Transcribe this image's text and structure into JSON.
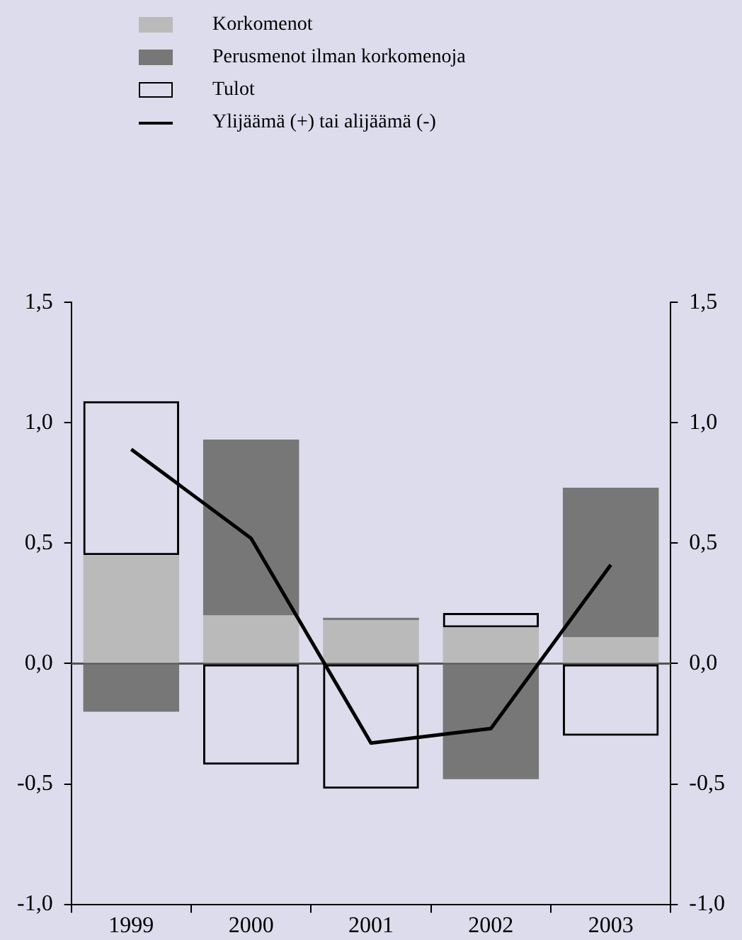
{
  "chart_data": {
    "type": "bar",
    "stacked": true,
    "categories": [
      "1999",
      "2000",
      "2001",
      "2002",
      "2003"
    ],
    "series": [
      {
        "name": "Korkomenot",
        "color": "#bababa",
        "values": [
          0.45,
          0.2,
          0.18,
          0.15,
          0.11
        ]
      },
      {
        "name": "Perusmenot ilman korkomenoja",
        "color": "#777777",
        "values": [
          -0.2,
          0.73,
          0.01,
          -0.48,
          0.62
        ]
      },
      {
        "name": "Tulot",
        "color": "#000000",
        "line_style": "solid",
        "values": [
          0.64,
          -0.42,
          -0.52,
          0.06,
          -0.3
        ]
      },
      {
        "name": "Ylijäämä (+) tai alijäämä (-)",
        "color": "#000000",
        "type": "line",
        "values": [
          0.89,
          0.52,
          -0.33,
          -0.27,
          0.41
        ]
      }
    ],
    "ylim": [
      -1,
      1.5
    ],
    "yticks": [
      {
        "value": -1,
        "label": "-1,0"
      },
      {
        "value": -0.5,
        "label": "-0,5"
      },
      {
        "value": 0,
        "label": "0,0"
      },
      {
        "value": 0.5,
        "label": "0,5"
      },
      {
        "value": 1,
        "label": "1,0"
      },
      {
        "value": 1.5,
        "label": "1,5"
      }
    ],
    "y2lim": [
      -1,
      1.5
    ],
    "y2ticks": [
      {
        "value": -1,
        "label": "-1,0"
      },
      {
        "value": -0.5,
        "label": "-0,5"
      },
      {
        "value": 0,
        "label": "0,0"
      },
      {
        "value": 0.5,
        "label": "0,5"
      },
      {
        "value": 1,
        "label": "1,0"
      },
      {
        "value": 1.5,
        "label": "1,5"
      }
    ],
    "ref_lines": [
      {
        "axis": "y",
        "value": 0,
        "color": "#555555"
      }
    ],
    "grid": false,
    "legend": "top left",
    "marker": "none",
    "line_style": "solid"
  }
}
